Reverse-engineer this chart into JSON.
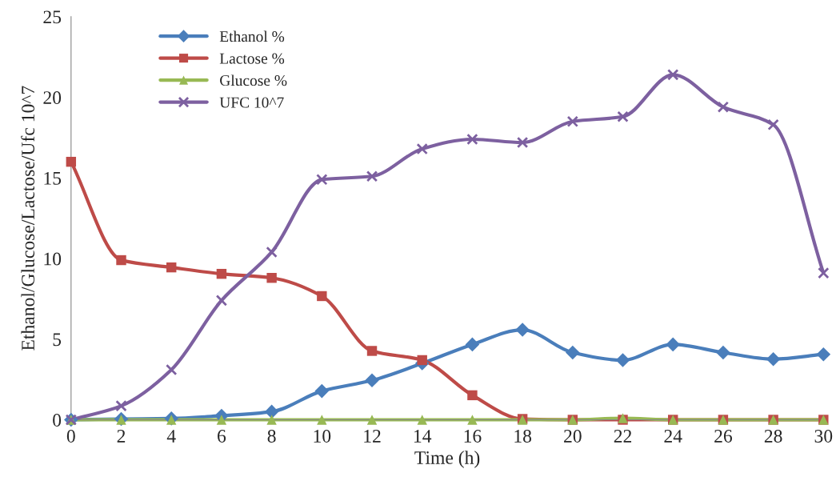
{
  "chart_data": {
    "type": "line",
    "xlabel": "Time (h)",
    "ylabel": "Ethanol/Glucose/Lactose/Ufc 10^7",
    "x": [
      0,
      2,
      4,
      6,
      8,
      10,
      12,
      14,
      16,
      18,
      20,
      22,
      24,
      26,
      28,
      30
    ],
    "xlim": [
      0,
      30
    ],
    "xticks": [
      0,
      2,
      4,
      6,
      8,
      10,
      12,
      14,
      16,
      18,
      20,
      22,
      24,
      26,
      28,
      30
    ],
    "ylim": [
      0,
      25
    ],
    "yticks": [
      0,
      5,
      10,
      15,
      20,
      25
    ],
    "grid": false,
    "legend": "top left",
    "series": [
      {
        "name": "Ethanol %",
        "color": "#4a7ebb",
        "marker": "diamond",
        "values": [
          0,
          0.05,
          0.08,
          0.25,
          0.5,
          1.78,
          2.44,
          3.5,
          4.67,
          5.58,
          4.17,
          3.7,
          4.67,
          4.17,
          3.76,
          4.06
        ]
      },
      {
        "name": "Lactose %",
        "color": "#be4b48",
        "marker": "square",
        "values": [
          16.0,
          9.9,
          9.45,
          9.05,
          8.8,
          7.67,
          4.27,
          3.7,
          1.52,
          0.05,
          0,
          0,
          0,
          0,
          0,
          0
        ]
      },
      {
        "name": "Glucose %",
        "color": "#98b954",
        "marker": "triangle",
        "values": [
          0,
          0,
          0,
          0,
          0,
          0,
          0,
          0,
          0,
          0,
          0,
          0.1,
          0,
          0,
          0,
          0
        ]
      },
      {
        "name": "UFC 10^7",
        "color": "#7d60a0",
        "marker": "cross",
        "values": [
          0,
          0.86,
          3.1,
          7.4,
          10.4,
          14.9,
          15.1,
          16.8,
          17.4,
          17.2,
          18.5,
          18.8,
          21.4,
          19.4,
          18.3,
          9.1
        ]
      }
    ]
  }
}
